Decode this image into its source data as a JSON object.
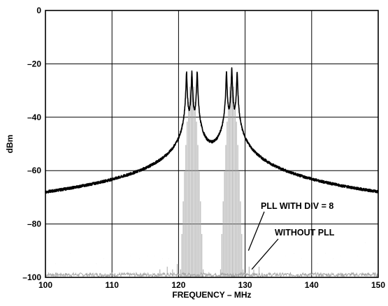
{
  "chart_data": {
    "type": "line",
    "title": "",
    "xlabel": "FREQUENCY – MHz",
    "ylabel": "dBm",
    "xlim": [
      100,
      150
    ],
    "ylim": [
      -100,
      0
    ],
    "x_ticks": [
      100,
      110,
      120,
      130,
      140,
      150
    ],
    "x_tick_labels": [
      "100",
      "110",
      "120",
      "130",
      "140",
      "150"
    ],
    "y_ticks": [
      0,
      -20,
      -40,
      -60,
      -80,
      -100
    ],
    "y_tick_labels": [
      "0",
      "–20",
      "–40",
      "–60",
      "–80",
      "–100"
    ],
    "grid": true,
    "colors": {
      "pll_series": "#000000",
      "without_pll_series": "#a8a8a8",
      "grid": "#000000"
    },
    "series": [
      {
        "name": "PLL WITH DIV = 8",
        "color": "#000000",
        "noise_floor_dBm": -98,
        "carriers_MHz": [
          121.2,
          122.0,
          122.8,
          127.2,
          128.0,
          128.8
        ],
        "carrier_peaks_dBm": [
          -23,
          -23,
          -23,
          -23,
          -22,
          -23
        ],
        "spurs_MHz": [
          100.5,
          101.5,
          102.5,
          103.7,
          105.0,
          106.3,
          107.6,
          108.8,
          110.2,
          111.5,
          112.8,
          114.1,
          115.3,
          116.3,
          117.6,
          118.5,
          119.6,
          131.6,
          132.6,
          133.7,
          134.9,
          136.1,
          137.3,
          138.5,
          139.8,
          140.9,
          142.1,
          143.2,
          144.4,
          145.7,
          146.9,
          148.1,
          149.4
        ],
        "spurs_dBm": [
          -93.5,
          -95,
          -94,
          -91,
          -94,
          -92,
          -95,
          -93,
          -91,
          -94,
          -92,
          -93,
          -92,
          -92,
          -93,
          -93,
          -94,
          -95,
          -93,
          -92,
          -94,
          -92,
          -91,
          -93,
          -94,
          -95,
          -91,
          -93,
          -92,
          -94,
          -92,
          -87,
          -95
        ]
      },
      {
        "name": "WITHOUT PLL",
        "color": "#a8a8a8",
        "noise_floor_dBm": -99,
        "carrier_spacing_MHz": 0.2,
        "carrier_bands_MHz": [
          [
            120.3,
            123.7
          ],
          [
            126.3,
            129.7
          ]
        ],
        "carrier_envelope_peak_dBm": -24,
        "carrier_envelope_edge_dBm": -97,
        "spurs_MHz": [
          117.2,
          118.3,
          119.1,
          119.8,
          130.6,
          131.3,
          132.1
        ],
        "spurs_dBm": [
          -97,
          -96,
          -97,
          -95,
          -96,
          -97,
          -96
        ]
      }
    ],
    "annotations": [
      {
        "text": "PLL WITH DIV = 8",
        "points_to_series": "PLL WITH DIV = 8",
        "target": [
          130.5,
          -90
        ]
      },
      {
        "text": "WITHOUT PLL",
        "points_to_series": "WITHOUT PLL",
        "target": [
          131.0,
          -97
        ]
      }
    ]
  }
}
